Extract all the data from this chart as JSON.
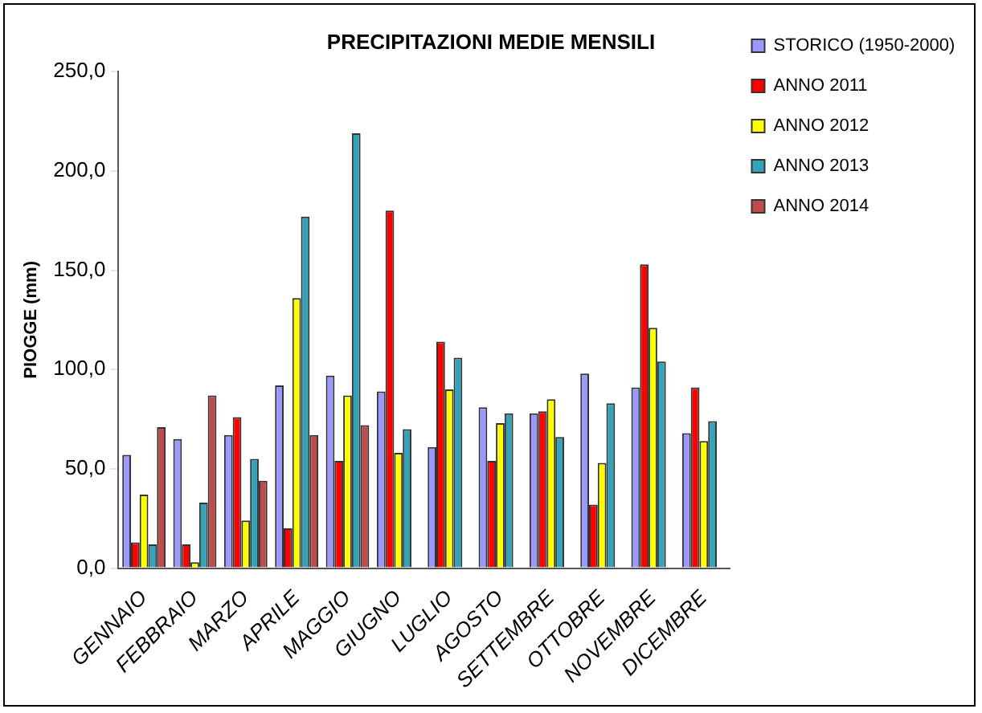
{
  "chart_data": {
    "type": "bar",
    "title": "PRECIPITAZIONI MEDIE MENSILI",
    "ylabel": "PIOGGE (mm)",
    "categories": [
      "GENNAIO",
      "FEBBRAIO",
      "MARZO",
      "APRILE",
      "MAGGIO",
      "GIUGNO",
      "LUGLIO",
      "AGOSTO",
      "SETTEMBRE",
      "OTTOBRE",
      "NOVEMBRE",
      "DICEMBRE"
    ],
    "series": [
      {
        "name": "STORICO (1950-2000)",
        "color": "#9999ff",
        "values": [
          57,
          65,
          67,
          92,
          97,
          89,
          61,
          81,
          78,
          98,
          91,
          68
        ]
      },
      {
        "name": "ANNO 2011",
        "color": "#ff0000",
        "values": [
          13,
          12,
          76,
          20,
          54,
          180,
          114,
          54,
          79,
          32,
          153,
          91
        ]
      },
      {
        "name": "ANNO 2012",
        "color": "#ffff00",
        "values": [
          37,
          3,
          24,
          136,
          87,
          58,
          90,
          73,
          85,
          53,
          121,
          64
        ]
      },
      {
        "name": "ANNO 2013",
        "color": "#33a3b9",
        "values": [
          12,
          33,
          55,
          177,
          219,
          70,
          106,
          78,
          66,
          83,
          104,
          74
        ]
      },
      {
        "name": "ANNO 2014",
        "color": "#c04b4b",
        "values": [
          71,
          87,
          44,
          67,
          72,
          null,
          null,
          null,
          null,
          null,
          null,
          null
        ]
      }
    ],
    "ylim": [
      0,
      250
    ],
    "yticks": [
      {
        "value": 0,
        "label": "0,0"
      },
      {
        "value": 50,
        "label": "50,0"
      },
      {
        "value": 100,
        "label": "100,0"
      },
      {
        "value": 150,
        "label": "150,0"
      },
      {
        "value": 200,
        "label": "200,0"
      },
      {
        "value": 250,
        "label": "250,0"
      }
    ],
    "grid": false,
    "legend": "right"
  }
}
